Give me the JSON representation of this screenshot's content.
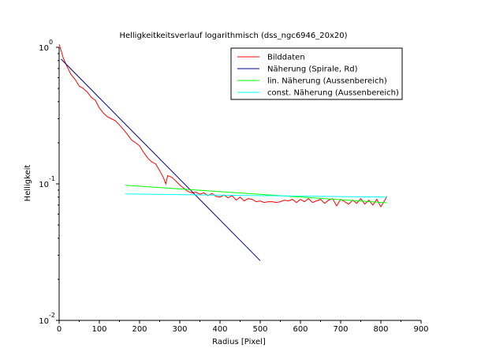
{
  "chart_data": {
    "type": "line",
    "title": "Helligkeitkeitsverlauf logarithmisch (dss_ngc6946_20x20)",
    "xlabel": "Radius [Pixel]",
    "ylabel": "Helligkeit",
    "xlim": [
      0,
      900
    ],
    "ylim": [
      0.01,
      1
    ],
    "yscale": "log",
    "grid": false,
    "legend_position": "top-right",
    "x_ticks": [
      0,
      100,
      200,
      300,
      400,
      500,
      600,
      700,
      800,
      900
    ],
    "x_tick_labels": [
      "0",
      "100",
      "200",
      "300",
      "400",
      "500",
      "600",
      "700",
      "800",
      "900"
    ],
    "y_ticks": [
      1,
      0.1,
      0.01
    ],
    "y_tick_labels": [
      {
        "base": "10",
        "exp": "0"
      },
      {
        "base": "10",
        "exp": "-1"
      },
      {
        "base": "10",
        "exp": "-2"
      }
    ],
    "series": [
      {
        "name": "Bilddaten",
        "color": "#ff0000",
        "points": [
          [
            0,
            1.05
          ],
          [
            5,
            0.95
          ],
          [
            10,
            0.84
          ],
          [
            20,
            0.72
          ],
          [
            30,
            0.63
          ],
          [
            40,
            0.58
          ],
          [
            50,
            0.52
          ],
          [
            60,
            0.5
          ],
          [
            70,
            0.47
          ],
          [
            80,
            0.43
          ],
          [
            90,
            0.41
          ],
          [
            100,
            0.36
          ],
          [
            110,
            0.33
          ],
          [
            120,
            0.31
          ],
          [
            130,
            0.3
          ],
          [
            140,
            0.29
          ],
          [
            150,
            0.27
          ],
          [
            160,
            0.25
          ],
          [
            170,
            0.23
          ],
          [
            180,
            0.21
          ],
          [
            190,
            0.2
          ],
          [
            200,
            0.19
          ],
          [
            210,
            0.17
          ],
          [
            220,
            0.155
          ],
          [
            230,
            0.145
          ],
          [
            240,
            0.14
          ],
          [
            250,
            0.125
          ],
          [
            260,
            0.11
          ],
          [
            265,
            0.1
          ],
          [
            270,
            0.115
          ],
          [
            280,
            0.112
          ],
          [
            290,
            0.105
          ],
          [
            300,
            0.098
          ],
          [
            310,
            0.093
          ],
          [
            320,
            0.088
          ],
          [
            330,
            0.086
          ],
          [
            340,
            0.087
          ],
          [
            350,
            0.084
          ],
          [
            360,
            0.086
          ],
          [
            370,
            0.082
          ],
          [
            380,
            0.085
          ],
          [
            390,
            0.081
          ],
          [
            400,
            0.08
          ],
          [
            410,
            0.083
          ],
          [
            420,
            0.079
          ],
          [
            430,
            0.082
          ],
          [
            440,
            0.076
          ],
          [
            450,
            0.08
          ],
          [
            460,
            0.075
          ],
          [
            470,
            0.078
          ],
          [
            480,
            0.077
          ],
          [
            490,
            0.074
          ],
          [
            500,
            0.075
          ],
          [
            510,
            0.073
          ],
          [
            520,
            0.074
          ],
          [
            530,
            0.074
          ],
          [
            540,
            0.073
          ],
          [
            550,
            0.074
          ],
          [
            560,
            0.076
          ],
          [
            570,
            0.075
          ],
          [
            580,
            0.077
          ],
          [
            590,
            0.073
          ],
          [
            600,
            0.077
          ],
          [
            610,
            0.074
          ],
          [
            620,
            0.078
          ],
          [
            630,
            0.073
          ],
          [
            640,
            0.075
          ],
          [
            650,
            0.077
          ],
          [
            660,
            0.072
          ],
          [
            670,
            0.076
          ],
          [
            680,
            0.078
          ],
          [
            690,
            0.069
          ],
          [
            700,
            0.077
          ],
          [
            710,
            0.074
          ],
          [
            720,
            0.071
          ],
          [
            730,
            0.076
          ],
          [
            740,
            0.072
          ],
          [
            750,
            0.078
          ],
          [
            760,
            0.071
          ],
          [
            770,
            0.076
          ],
          [
            780,
            0.07
          ],
          [
            790,
            0.077
          ],
          [
            800,
            0.068
          ],
          [
            810,
            0.076
          ],
          [
            815,
            0.081
          ]
        ]
      },
      {
        "name": "Näherung (Spirale, Rd)",
        "color": "#00008b",
        "points": [
          [
            5,
            0.82
          ],
          [
            500,
            0.0274
          ]
        ]
      },
      {
        "name": "lin. Näherung (Aussenbereich)",
        "color": "#00ff00",
        "points": [
          [
            165,
            0.0976
          ],
          [
            815,
            0.0727
          ]
        ]
      },
      {
        "name": "const. Näherung (Aussenbereich)",
        "color": "#00ffff",
        "points": [
          [
            165,
            0.0843
          ],
          [
            815,
            0.08
          ]
        ]
      }
    ]
  }
}
